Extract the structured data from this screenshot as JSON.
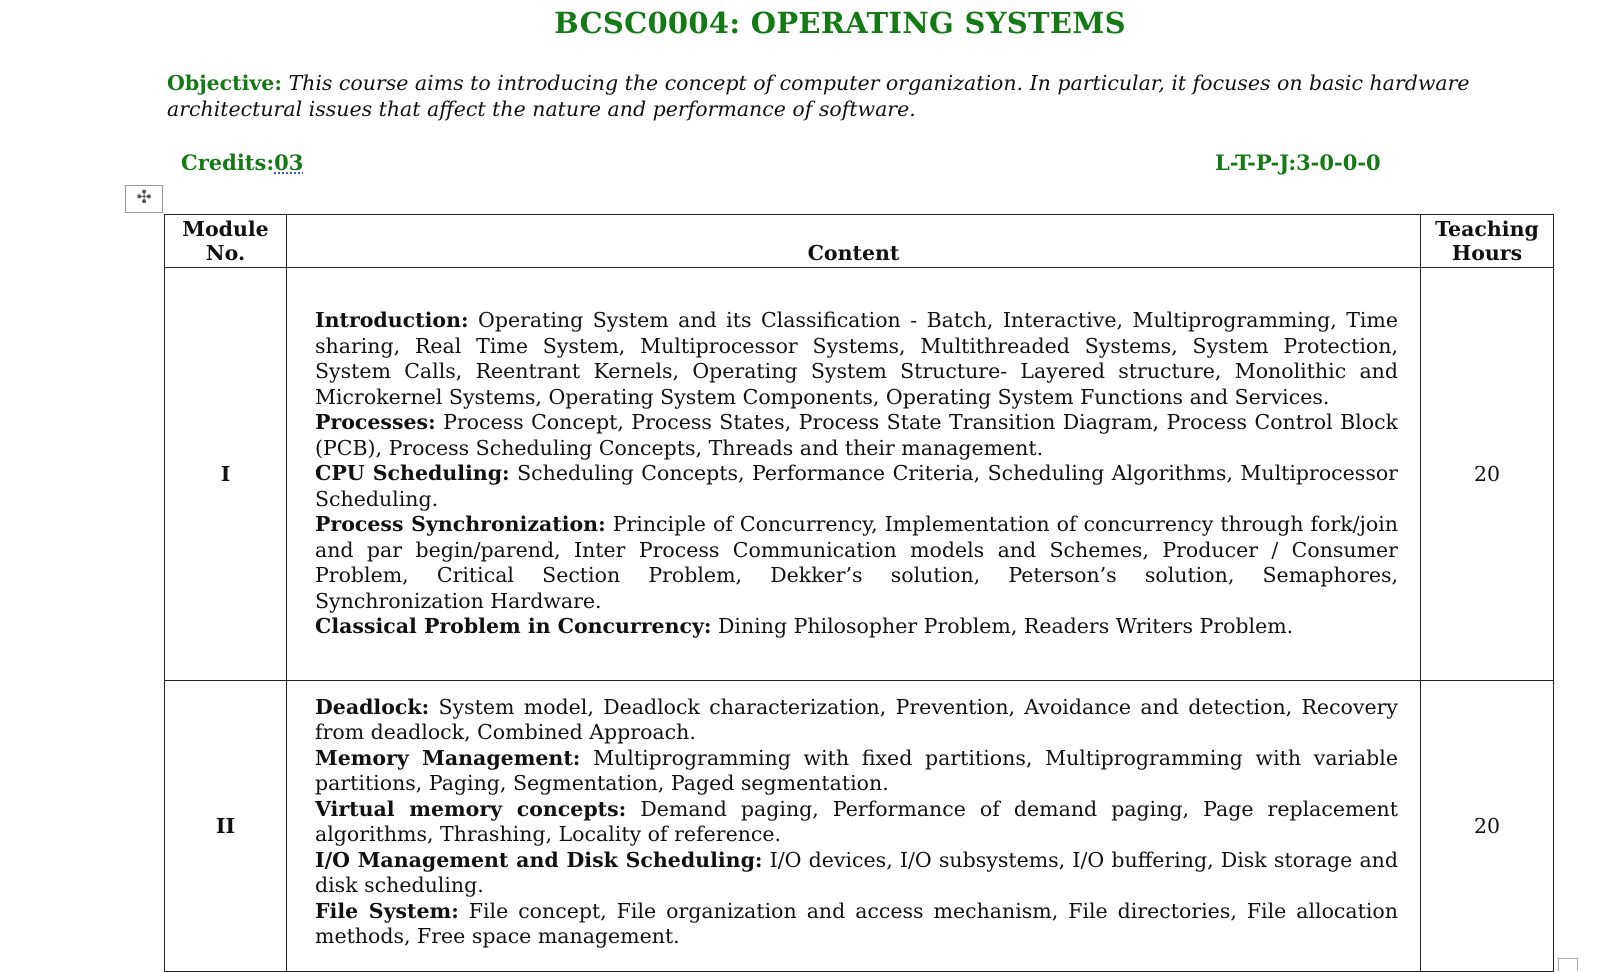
{
  "title": "BCSC0004: OPERATING SYSTEMS",
  "objective": {
    "label": "Objective:",
    "text": "This course aims to introducing the concept of computer organization. In particular, it focuses on basic hardware architectural issues that affect the nature and performance of software."
  },
  "credits": {
    "label": "Credits:",
    "value": "03"
  },
  "ltpj": "L-T-P-J:3-0-0-0",
  "table": {
    "headers": {
      "module_line1": "Module",
      "module_line2": "No.",
      "content": "Content",
      "hours_line1": "Teaching",
      "hours_line2": "Hours"
    },
    "rows": [
      {
        "module": "I",
        "hours": "20",
        "paragraphs": [
          {
            "heading": "Introduction:",
            "text": "Operating System and its Classification - Batch, Interactive, Multiprogramming, Time sharing, Real Time System, Multiprocessor Systems, Multithreaded Systems, System Protection, System Calls, Reentrant Kernels, Operating System Structure- Layered structure, Monolithic and Microkernel Systems, Operating System Components, Operating System Functions and Services."
          },
          {
            "heading": "Processes:",
            "text": "Process Concept, Process States, Process State Transition Diagram, Process Control Block (PCB), Process Scheduling Concepts, Threads and their management."
          },
          {
            "heading": "CPU Scheduling:",
            "text": "Scheduling Concepts, Performance Criteria, Scheduling Algorithms, Multiprocessor Scheduling."
          },
          {
            "heading": "Process Synchronization:",
            "text": "Principle of Concurrency, Implementation of concurrency through fork/join and par begin/parend, Inter Process Communication models and Schemes, Producer / Consumer Problem, Critical Section Problem, Dekker’s solution, Peterson’s solution, Semaphores, Synchronization Hardware."
          },
          {
            "heading": "Classical Problem in Concurrency:",
            "text": "Dining Philosopher Problem, Readers Writers Problem."
          }
        ]
      },
      {
        "module": "II",
        "hours": "20",
        "paragraphs": [
          {
            "heading": "Deadlock:",
            "text": "System model, Deadlock characterization, Prevention, Avoidance and detection, Recovery from deadlock, Combined Approach."
          },
          {
            "heading": "Memory Management:",
            "text": "Multiprogramming with fixed partitions, Multiprogramming with variable partitions, Paging, Segmentation, Paged segmentation."
          },
          {
            "heading": "Virtual memory concepts:",
            "text": "Demand paging, Performance of demand paging, Page replacement algorithms, Thrashing, Locality of reference."
          },
          {
            "heading": "I/O Management and Disk Scheduling:",
            "text": "I/O devices, I/O subsystems, I/O buffering, Disk storage and disk scheduling."
          },
          {
            "heading": "File System:",
            "text": "File concept, File organization and access mechanism, File directories, File allocation methods, Free space management."
          }
        ]
      }
    ]
  },
  "icons": {
    "table_move": "move-icon",
    "table_resize": "resize-handle-icon"
  }
}
